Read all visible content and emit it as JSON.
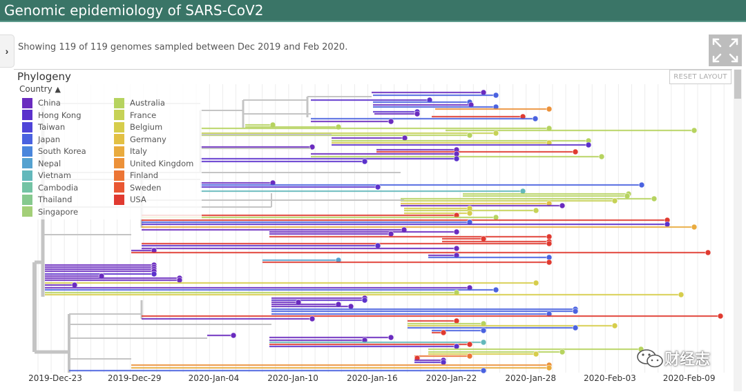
{
  "app": {
    "title": "Genomic epidemiology of SARS-CoV2"
  },
  "summary": "Showing 119 of 119 genomes sampled between Dec 2019 and Feb 2020.",
  "panel": {
    "title": "Phylogeny",
    "reset_label": "RESET LAYOUT"
  },
  "legend": {
    "toggle_label": "Country",
    "items": [
      {
        "label": "China",
        "color": "#6a2bbf"
      },
      {
        "label": "Hong Kong",
        "color": "#5b31cc"
      },
      {
        "label": "Taiwan",
        "color": "#4f44d8"
      },
      {
        "label": "Japan",
        "color": "#4a62e0"
      },
      {
        "label": "South Korea",
        "color": "#4a86dc"
      },
      {
        "label": "Nepal",
        "color": "#55a2d0"
      },
      {
        "label": "Vietnam",
        "color": "#63b8bb"
      },
      {
        "label": "Cambodia",
        "color": "#73c3a4"
      },
      {
        "label": "Thailand",
        "color": "#86c98e"
      },
      {
        "label": "Singapore",
        "color": "#a3cf78"
      },
      {
        "label": "Australia",
        "color": "#b6d35f"
      },
      {
        "label": "France",
        "color": "#c6d256"
      },
      {
        "label": "Belgium",
        "color": "#d6cd4b"
      },
      {
        "label": "Germany",
        "color": "#e2c044"
      },
      {
        "label": "Italy",
        "color": "#e9ab3e"
      },
      {
        "label": "United Kingdom",
        "color": "#ec9139"
      },
      {
        "label": "Finland",
        "color": "#ec7535"
      },
      {
        "label": "Sweden",
        "color": "#e95733"
      },
      {
        "label": "USA",
        "color": "#e03a30"
      }
    ]
  },
  "axis": {
    "ticks": [
      "2019-Dec-23",
      "2019-Dec-29",
      "2020-Jan-04",
      "2020-Jan-10",
      "2020-Jan-16",
      "2020-Jan-22",
      "2020-Jan-28",
      "2020-Feb-03",
      "2020-Feb-09"
    ]
  },
  "watermark": {
    "text": "财经志",
    "icon": "wechat-icon"
  },
  "icons": {
    "toggle": "chevron-right-icon",
    "expand": "expand-arrows-icon",
    "legend": "chevron-up-icon"
  }
}
